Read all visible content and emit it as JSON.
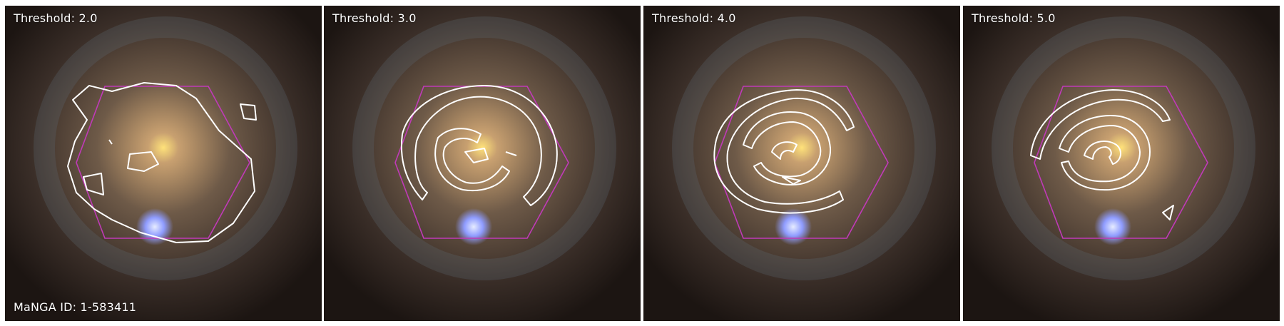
{
  "figure": {
    "panels": [
      {
        "label": "Threshold: 2.0",
        "threshold": 2.0
      },
      {
        "label": "Threshold: 3.0",
        "threshold": 3.0
      },
      {
        "label": "Threshold: 4.0",
        "threshold": 4.0
      },
      {
        "label": "Threshold: 5.0",
        "threshold": 5.0
      }
    ],
    "id_label": "MaNGA ID: 1-583411"
  },
  "colors": {
    "hexagon": "#c03ab8",
    "contour": "#ffffff",
    "core": "#ffe27a",
    "star": "#a8b8ff"
  }
}
